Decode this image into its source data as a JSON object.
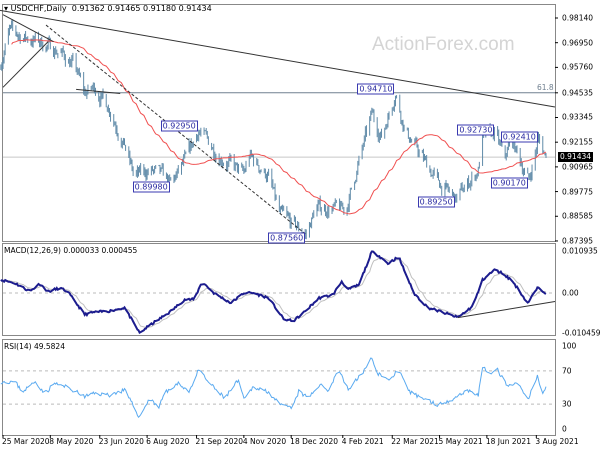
{
  "header": {
    "symbol_label": "USDCHF,Daily",
    "ohlc": "0.91362 0.91465 0.91180 0.91434",
    "menu_icon": "triangle-down-icon"
  },
  "watermark": "ActionForex.com",
  "colors": {
    "bars": "#5f8aa8",
    "moving_average": "#f05050",
    "macd": "#1c1c8e",
    "macd_signal": "#c0c0c0",
    "rsi": "#5aaaf0",
    "labels": "#2a2aa0",
    "trendline": "#333333"
  },
  "chart_data": [
    {
      "type": "candlestick",
      "title": "USDCHF,Daily",
      "last_price": "0.91434",
      "y_ticks": [
        "0.98140",
        "0.96950",
        "0.95760",
        "0.94535",
        "0.93345",
        "0.92155",
        "0.90965",
        "0.89775",
        "0.88585",
        "0.87395"
      ],
      "ylim": [
        0.87395,
        0.9814
      ],
      "x_ticks": [
        {
          "date": "2020-03-25",
          "label": "25 Mar 2020"
        },
        {
          "date": "2020-05-08",
          "label": "8 May 2020"
        },
        {
          "date": "2020-06-23",
          "label": "23 Jun 2020"
        },
        {
          "date": "2020-08-06",
          "label": "6 Aug 2020"
        },
        {
          "date": "2020-09-21",
          "label": "21 Sep 2020"
        },
        {
          "date": "2020-11-04",
          "label": "4 Nov 2020"
        },
        {
          "date": "2020-12-18",
          "label": "18 Dec 2020"
        },
        {
          "date": "2021-02-04",
          "label": "4 Feb 2021"
        },
        {
          "date": "2021-03-22",
          "label": "22 Mar 2021"
        },
        {
          "date": "2021-05-05",
          "label": "5 May 2021"
        },
        {
          "date": "2021-06-18",
          "label": "18 Jun 2021"
        },
        {
          "date": "2021-08-03",
          "label": "3 Aug 2021"
        }
      ],
      "price_path": [
        [
          "2020-03-23",
          0.96
        ],
        [
          "2020-03-31",
          0.975
        ],
        [
          "2020-04-14",
          0.972
        ],
        [
          "2020-04-28",
          0.97
        ],
        [
          "2020-05-17",
          0.965
        ],
        [
          "2020-05-31",
          0.958
        ],
        [
          "2020-06-09",
          0.945
        ],
        [
          "2020-06-18",
          0.948
        ],
        [
          "2020-07-02",
          0.938
        ],
        [
          "2020-07-16",
          0.92
        ],
        [
          "2020-07-25",
          0.905
        ],
        [
          "2020-08-08",
          0.908
        ],
        [
          "2020-08-22",
          0.905
        ],
        [
          "2020-08-28",
          0.901
        ],
        [
          "2020-09-10",
          0.912
        ],
        [
          "2020-09-23",
          0.9275
        ],
        [
          "2020-10-12",
          0.915
        ],
        [
          "2020-11-04",
          0.906
        ],
        [
          "2020-11-09",
          0.915
        ],
        [
          "2020-11-27",
          0.905
        ],
        [
          "2020-12-07",
          0.887
        ],
        [
          "2021-01-01",
          0.877
        ],
        [
          "2021-01-10",
          0.89
        ],
        [
          "2021-02-07",
          0.889
        ],
        [
          "2021-03-03",
          0.935
        ],
        [
          "2021-03-12",
          0.924
        ],
        [
          "2021-03-25",
          0.9455
        ],
        [
          "2021-04-03",
          0.927
        ],
        [
          "2021-05-04",
          0.902
        ],
        [
          "2021-05-20",
          0.894
        ],
        [
          "2021-06-10",
          0.908
        ],
        [
          "2021-06-13",
          0.923
        ],
        [
          "2021-06-26",
          0.926
        ],
        [
          "2021-07-04",
          0.913
        ],
        [
          "2021-07-11",
          0.9225
        ],
        [
          "2021-07-27",
          0.903
        ],
        [
          "2021-08-05",
          0.923
        ],
        [
          "2021-08-12",
          0.91434
        ]
      ],
      "fib_level": {
        "label": "61.8",
        "price": 0.94535
      },
      "trendlines": [
        {
          "style": "solid",
          "points": [
            [
              "2020-03-20",
              0.9853
            ],
            [
              "2021-08-22",
              0.9385
            ]
          ]
        },
        {
          "style": "solid",
          "points": [
            [
              "2020-03-25",
              0.983
            ],
            [
              "2020-05-11",
              0.97
            ]
          ]
        },
        {
          "style": "solid",
          "points": [
            [
              "2020-03-25",
              0.948
            ],
            [
              "2020-05-06",
              0.97
            ]
          ]
        },
        {
          "style": "solid",
          "points": [
            [
              "2020-06-01",
              0.947
            ],
            [
              "2020-07-12",
              0.945
            ]
          ]
        },
        {
          "style": "dashed",
          "points": [
            [
              "2020-05-04",
              0.978
            ],
            [
              "2021-01-01",
              0.877
            ]
          ]
        }
      ],
      "price_labels": [
        {
          "text": "0.92950",
          "date": "2020-09-23",
          "price": 0.9295,
          "side": "left"
        },
        {
          "text": "0.89980",
          "date": "2020-08-28",
          "price": 0.8998,
          "side": "left"
        },
        {
          "text": "0.87560",
          "date": "2021-01-01",
          "price": 0.8756,
          "side": "left"
        },
        {
          "text": "0.94710",
          "date": "2021-03-25",
          "price": 0.9471,
          "side": "left"
        },
        {
          "text": "0.89250",
          "date": "2021-05-20",
          "price": 0.8925,
          "side": "left"
        },
        {
          "text": "0.92730",
          "date": "2021-06-26",
          "price": 0.9273,
          "side": "left"
        },
        {
          "text": "0.92410",
          "date": "2021-06-30",
          "price": 0.9241,
          "side": "right"
        },
        {
          "text": "0.90170",
          "date": "2021-07-27",
          "price": 0.9017,
          "side": "left"
        }
      ]
    },
    {
      "type": "line",
      "title": "MACD(12,26,9) 0.000033 0.000455",
      "y_ticks": [
        "0.010935",
        "0.00",
        "-0.010459"
      ],
      "ylim": [
        -0.010459,
        0.010935
      ],
      "macd": [
        [
          "2020-03-23",
          0.0034
        ],
        [
          "2020-04-05",
          0.0026
        ],
        [
          "2020-04-19",
          0.0004
        ],
        [
          "2020-04-28",
          0.0024
        ],
        [
          "2020-05-06",
          0.0004
        ],
        [
          "2020-05-17",
          0.0013
        ],
        [
          "2020-05-24",
          0.0004
        ],
        [
          "2020-06-09",
          -0.0056
        ],
        [
          "2020-06-18",
          -0.005
        ],
        [
          "2020-07-02",
          -0.0047
        ],
        [
          "2020-07-16",
          -0.0038
        ],
        [
          "2020-07-30",
          -0.0104
        ],
        [
          "2020-08-08",
          -0.0085
        ],
        [
          "2020-08-27",
          -0.005
        ],
        [
          "2020-09-10",
          -0.0017
        ],
        [
          "2020-09-19",
          -0.0017
        ],
        [
          "2020-09-26",
          0.003
        ],
        [
          "2020-10-07",
          0.0
        ],
        [
          "2020-10-23",
          -0.0026
        ],
        [
          "2020-11-04",
          0.0
        ],
        [
          "2020-11-13",
          0.0
        ],
        [
          "2020-11-27",
          -0.0013
        ],
        [
          "2020-12-11",
          -0.0068
        ],
        [
          "2020-12-20",
          -0.0073
        ],
        [
          "2020-12-30",
          -0.005
        ],
        [
          "2021-01-13",
          -0.0013
        ],
        [
          "2021-01-26",
          -0.0004
        ],
        [
          "2021-02-03",
          0.003
        ],
        [
          "2021-02-09",
          0.0009
        ],
        [
          "2021-02-19",
          0.0021
        ],
        [
          "2021-03-03",
          0.0107
        ],
        [
          "2021-03-09",
          0.0098
        ],
        [
          "2021-03-18",
          0.0077
        ],
        [
          "2021-03-28",
          0.0094
        ],
        [
          "2021-04-11",
          0.0
        ],
        [
          "2021-04-24",
          -0.0038
        ],
        [
          "2021-05-08",
          -0.005
        ],
        [
          "2021-05-22",
          -0.0064
        ],
        [
          "2021-06-05",
          -0.0034
        ],
        [
          "2021-06-14",
          0.0034
        ],
        [
          "2021-06-25",
          0.006
        ],
        [
          "2021-07-03",
          0.0051
        ],
        [
          "2021-07-12",
          0.003
        ],
        [
          "2021-07-26",
          -0.0026
        ],
        [
          "2021-08-04",
          0.0013
        ],
        [
          "2021-08-12",
          3.3e-05
        ]
      ],
      "trendline": [
        [
          "2021-05-22",
          -0.0064
        ],
        [
          "2021-08-22",
          -0.0022
        ]
      ]
    },
    {
      "type": "line",
      "title": "RSI(14) 49.5824",
      "y_ticks": [
        "100",
        "70",
        "30",
        "0"
      ],
      "ylim": [
        0,
        100
      ],
      "levels": [
        70,
        30
      ],
      "rsi": [
        [
          "2020-03-23",
          57
        ],
        [
          "2020-04-05",
          57
        ],
        [
          "2020-04-12",
          45
        ],
        [
          "2020-04-24",
          57
        ],
        [
          "2020-05-03",
          43
        ],
        [
          "2020-05-12",
          55
        ],
        [
          "2020-05-26",
          49
        ],
        [
          "2020-06-09",
          39
        ],
        [
          "2020-06-18",
          43
        ],
        [
          "2020-07-02",
          41
        ],
        [
          "2020-07-16",
          47
        ],
        [
          "2020-07-30",
          14
        ],
        [
          "2020-08-08",
          37
        ],
        [
          "2020-08-17",
          27
        ],
        [
          "2020-08-22",
          43
        ],
        [
          "2020-09-05",
          55
        ],
        [
          "2020-09-14",
          45
        ],
        [
          "2020-09-23",
          71
        ],
        [
          "2020-10-03",
          55
        ],
        [
          "2020-10-17",
          37
        ],
        [
          "2020-10-30",
          59
        ],
        [
          "2020-11-04",
          35
        ],
        [
          "2020-11-13",
          51
        ],
        [
          "2020-11-27",
          45
        ],
        [
          "2020-12-07",
          29
        ],
        [
          "2020-12-19",
          25
        ],
        [
          "2020-12-25",
          45
        ],
        [
          "2021-01-03",
          37
        ],
        [
          "2021-01-13",
          53
        ],
        [
          "2021-01-22",
          47
        ],
        [
          "2021-01-31",
          73
        ],
        [
          "2021-02-09",
          47
        ],
        [
          "2021-02-23",
          69
        ],
        [
          "2021-03-03",
          85
        ],
        [
          "2021-03-09",
          67
        ],
        [
          "2021-03-18",
          59
        ],
        [
          "2021-03-28",
          71
        ],
        [
          "2021-04-06",
          45
        ],
        [
          "2021-04-20",
          37
        ],
        [
          "2021-05-04",
          29
        ],
        [
          "2021-05-18",
          37
        ],
        [
          "2021-05-31",
          47
        ],
        [
          "2021-06-10",
          41
        ],
        [
          "2021-06-14",
          73
        ],
        [
          "2021-06-24",
          67
        ],
        [
          "2021-06-28",
          71
        ],
        [
          "2021-07-07",
          51
        ],
        [
          "2021-07-17",
          55
        ],
        [
          "2021-07-26",
          35
        ],
        [
          "2021-08-04",
          63
        ],
        [
          "2021-08-09",
          45
        ],
        [
          "2021-08-12",
          49.5824
        ]
      ]
    }
  ]
}
